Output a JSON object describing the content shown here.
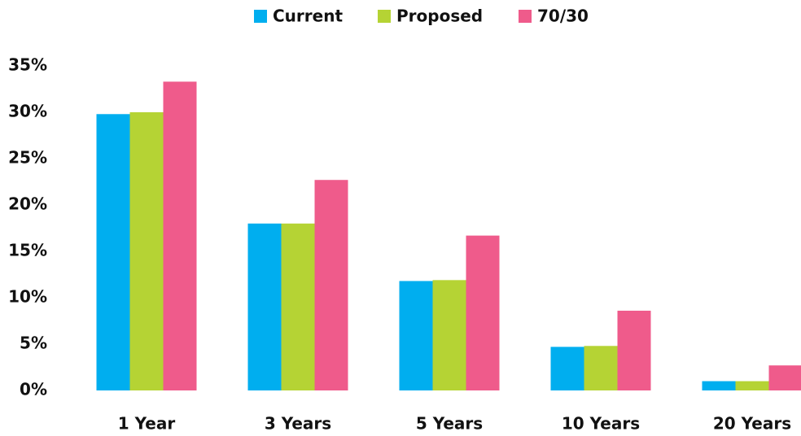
{
  "chart_data": {
    "type": "bar",
    "categories": [
      "1 Year",
      "3 Years",
      "5 Years",
      "10 Years",
      "20 Years"
    ],
    "series": [
      {
        "name": "Current",
        "color": "#00aeef",
        "values": [
          29.8,
          18.0,
          11.8,
          4.7,
          1.0
        ]
      },
      {
        "name": "Proposed",
        "color": "#b5d334",
        "values": [
          30.0,
          18.0,
          11.9,
          4.8,
          1.0
        ]
      },
      {
        "name": "70/30",
        "color": "#ef5b8b",
        "values": [
          33.3,
          22.7,
          16.7,
          8.6,
          2.7
        ]
      }
    ],
    "ylim": [
      0,
      35
    ],
    "yticks": [
      {
        "value": 0,
        "label": "0%"
      },
      {
        "value": 5,
        "label": "5%"
      },
      {
        "value": 10,
        "label": "10%"
      },
      {
        "value": 15,
        "label": "15%"
      },
      {
        "value": 20,
        "label": "20%"
      },
      {
        "value": 25,
        "label": "25%"
      },
      {
        "value": 30,
        "label": "30%"
      },
      {
        "value": 35,
        "label": "35%"
      }
    ],
    "grid": false,
    "legend": "top"
  }
}
